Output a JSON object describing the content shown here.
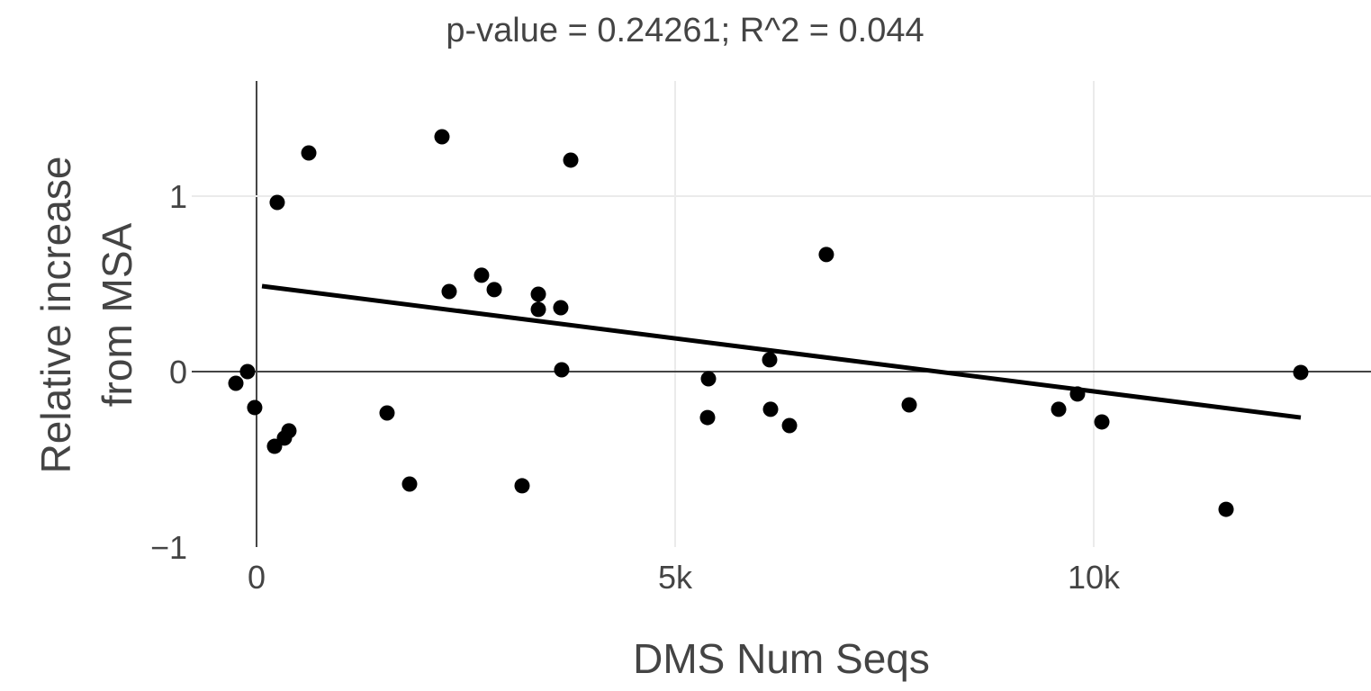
{
  "chart_data": {
    "type": "scatter",
    "title": "p-value = 0.24261; R^2 = 0.044",
    "xlabel": "DMS Num Seqs",
    "ylabel_lines": [
      "Relative increase",
      "from MSA"
    ],
    "xlim": [
      -774,
      13312
    ],
    "ylim": [
      -1,
      1.656
    ],
    "x_ticks": [
      {
        "value": 0,
        "label": "0"
      },
      {
        "value": 5000,
        "label": "5k"
      },
      {
        "value": 10000,
        "label": "10k"
      }
    ],
    "y_ticks": [
      {
        "value": -1,
        "label": "−1"
      },
      {
        "value": 0,
        "label": "0"
      },
      {
        "value": 1,
        "label": "1"
      }
    ],
    "grid": true,
    "point_color": "#000000",
    "line_color": "#000000",
    "points": [
      [
        -247,
        -0.067
      ],
      [
        -108,
        0.0
      ],
      [
        -22,
        -0.205
      ],
      [
        215,
        -0.426
      ],
      [
        247,
        0.964
      ],
      [
        333,
        -0.379
      ],
      [
        387,
        -0.338
      ],
      [
        624,
        1.246
      ],
      [
        1559,
        -0.236
      ],
      [
        1828,
        -0.641
      ],
      [
        2215,
        1.338
      ],
      [
        2301,
        0.456
      ],
      [
        2688,
        0.549
      ],
      [
        2839,
        0.467
      ],
      [
        3172,
        -0.651
      ],
      [
        3366,
        0.441
      ],
      [
        3366,
        0.354
      ],
      [
        3634,
        0.364
      ],
      [
        3645,
        0.01
      ],
      [
        3753,
        1.205
      ],
      [
        5387,
        -0.262
      ],
      [
        5398,
        -0.041
      ],
      [
        6129,
        0.067
      ],
      [
        6140,
        -0.215
      ],
      [
        6366,
        -0.308
      ],
      [
        6806,
        0.667
      ],
      [
        7796,
        -0.19
      ],
      [
        9581,
        -0.215
      ],
      [
        9806,
        -0.128
      ],
      [
        10097,
        -0.287
      ],
      [
        11581,
        -0.785
      ],
      [
        12473,
        -0.005
      ]
    ],
    "trendline": [
      [
        65,
        0.487
      ],
      [
        12473,
        -0.262
      ]
    ]
  }
}
